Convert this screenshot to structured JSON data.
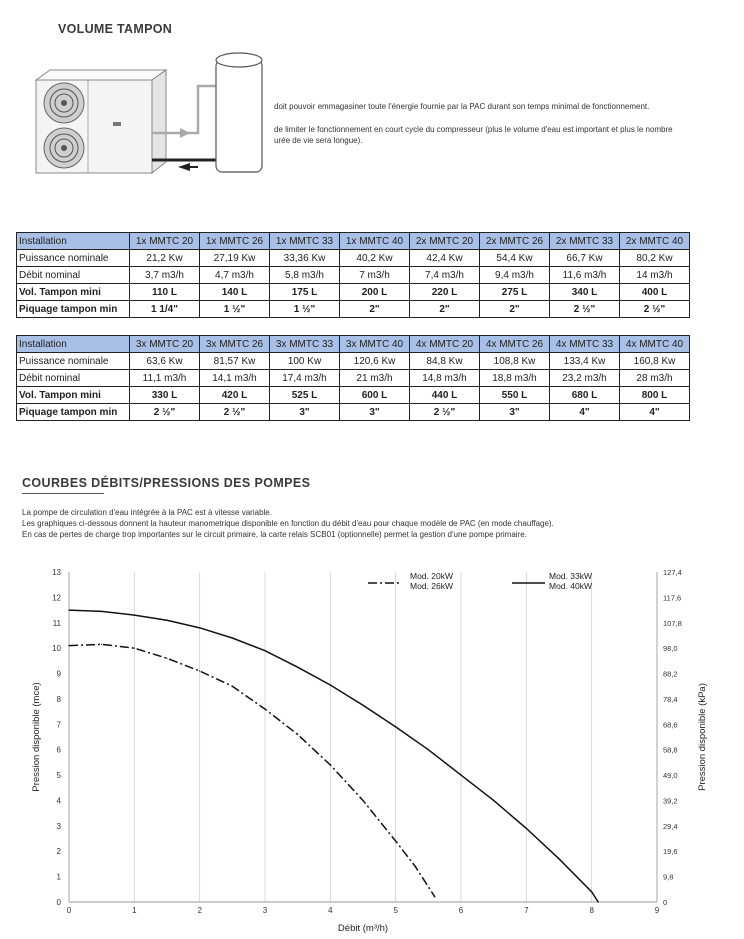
{
  "section1": {
    "title": "VOLUME TAMPON",
    "text1": "doit pouvoir emmagasiner toute l'énergie fournie par la PAC durant son temps minimal de fonctionnement.",
    "text2a": "de limiter le fonctionnement en court cycle du compresseur (plus le volume d'eau est important et plus le nombre",
    "text2b": "urée de vie sera longue)."
  },
  "table1": {
    "rows": [
      [
        "Installation",
        "1x MMTC 20",
        "1x MMTC 26",
        "1x MMTC 33",
        "1x MMTC 40",
        "2x MMTC 20",
        "2x MMTC 26",
        "2x MMTC 33",
        "2x MMTC 40"
      ],
      [
        "Puissance nominale",
        "21,2 Kw",
        "27,19 Kw",
        "33,36 Kw",
        "40,2 Kw",
        "42,4 Kw",
        "54,4 Kw",
        "66,7 Kw",
        "80,2 Kw"
      ],
      [
        "Débit nominal",
        "3,7 m3/h",
        "4,7 m3/h",
        "5,8 m3/h",
        "7 m3/h",
        "7,4 m3/h",
        "9,4 m3/h",
        "11,6 m3/h",
        "14 m3/h"
      ],
      [
        "Vol. Tampon mini",
        "110 L",
        "140 L",
        "175 L",
        "200 L",
        "220 L",
        "275 L",
        "340 L",
        "400 L"
      ],
      [
        "Piquage tampon min",
        "1 1/4\"",
        "1 ½\"",
        "1 ½\"",
        "2\"",
        "2\"",
        "2\"",
        "2 ½\"",
        "2 ½\""
      ]
    ]
  },
  "table2": {
    "rows": [
      [
        "Installation",
        "3x MMTC 20",
        "3x MMTC 26",
        "3x MMTC 33",
        "3x MMTC 40",
        "4x MMTC 20",
        "4x MMTC 26",
        "4x MMTC 33",
        "4x MMTC 40"
      ],
      [
        "Puissance nominale",
        "63,6 Kw",
        "81,57 Kw",
        "100 Kw",
        "120,6 Kw",
        "84,8 Kw",
        "108,8 Kw",
        "133,4 Kw",
        "160,8 Kw"
      ],
      [
        "Débit nominal",
        "11,1 m3/h",
        "14,1 m3/h",
        "17,4 m3/h",
        "21 m3/h",
        "14,8 m3/h",
        "18,8 m3/h",
        "23,2 m3/h",
        "28 m3/h"
      ],
      [
        "Vol. Tampon mini",
        "330 L",
        "420 L",
        "525 L",
        "600 L",
        "440 L",
        "550 L",
        "680 L",
        "800 L"
      ],
      [
        "Piquage tampon min",
        "2 ½\"",
        "2 ½\"",
        "3\"",
        "3\"",
        "2 ½\"",
        "3\"",
        "4\"",
        "4\""
      ]
    ]
  },
  "section2": {
    "title": "COURBES DÉBITS/PRESSIONS DES POMPES",
    "para1": "La pompe de circulation d'eau intégrée à la PAC est à vitesse variable.",
    "para2": "Les graphiques ci-dessous donnent la hauteur manometrique disponible en fonction du débit d'eau pour chaque modèle de PAC (en mode chauffage).",
    "para3": "En cas de pertes de charge trop importantes sur le circuit primaire, la carte relais SCB01 (optionnelle) permet la gestion d'une pompe primaire."
  },
  "chart_data": {
    "type": "line",
    "xlabel": "Débit (m³/h)",
    "ylabel": "Pression disponible (mce)",
    "ylabel_right": "Pression disponible (kPa)",
    "xlim": [
      0,
      9
    ],
    "ylim": [
      0,
      13
    ],
    "x_ticks": [
      "0",
      "1",
      "2",
      "3",
      "4",
      "5",
      "6",
      "7",
      "8",
      "9"
    ],
    "y_ticks": [
      "0",
      "1",
      "2",
      "3",
      "4",
      "5",
      "6",
      "7",
      "8",
      "9",
      "10",
      "11",
      "12",
      "13"
    ],
    "y_ticks_right": [
      "0",
      "9,8",
      "19,6",
      "29,4",
      "39,2",
      "49,0",
      "58,8",
      "68,6",
      "78,4",
      "88,2",
      "98,0",
      "107,8",
      "117,6",
      "127,4"
    ],
    "grid": "vertical",
    "legend_position": "top-right",
    "series": [
      {
        "name": "Mod. 20kW\nMod. 26kW",
        "style": "dash-dot",
        "x": [
          0,
          0.5,
          1,
          1.5,
          2,
          2.5,
          3,
          3.5,
          4,
          4.5,
          5,
          5.3,
          5.6
        ],
        "y": [
          10.1,
          10.15,
          10.0,
          9.6,
          9.1,
          8.5,
          7.6,
          6.6,
          5.4,
          4.0,
          2.4,
          1.4,
          0.2
        ]
      },
      {
        "name": "Mod. 33kW\nMod. 40kW",
        "style": "solid",
        "x": [
          0,
          0.5,
          1,
          1.5,
          2,
          2.5,
          3,
          3.5,
          4,
          4.5,
          5,
          5.5,
          6,
          6.5,
          7,
          7.5,
          8,
          8.1
        ],
        "y": [
          11.5,
          11.45,
          11.3,
          11.1,
          10.8,
          10.4,
          9.9,
          9.25,
          8.55,
          7.75,
          6.9,
          6.0,
          5.0,
          4.0,
          2.9,
          1.7,
          0.4,
          0.0
        ]
      }
    ]
  }
}
